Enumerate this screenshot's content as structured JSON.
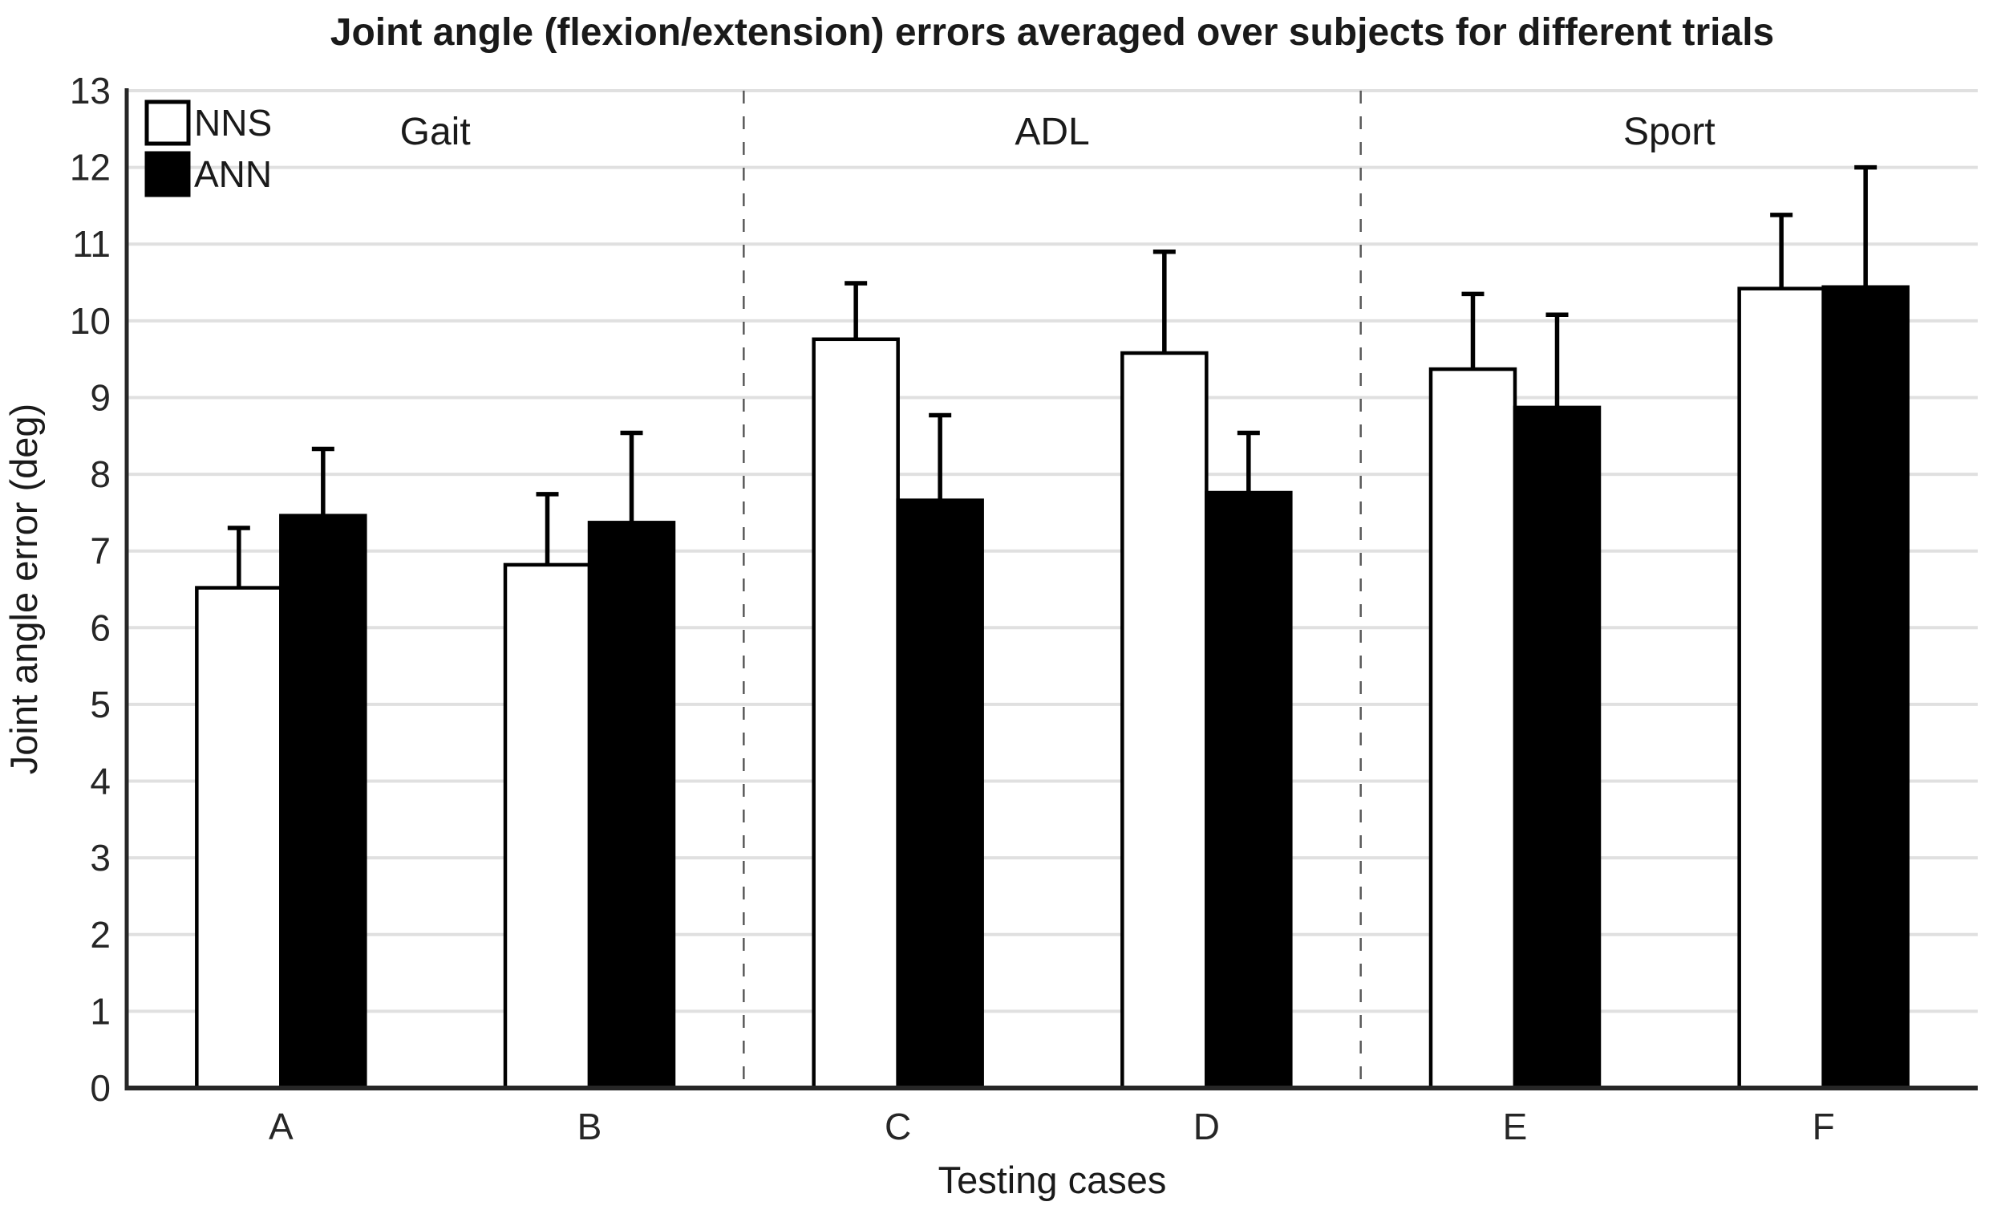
{
  "title": "Joint angle (flexion/extension) errors averaged over subjects for different trials",
  "axes": {
    "x_label": "Testing cases",
    "y_label": "Joint angle error (deg)"
  },
  "legend": {
    "items": [
      {
        "label": "NNS",
        "color": "#ffffff"
      },
      {
        "label": "ANN",
        "color": "#000000"
      }
    ]
  },
  "sections": [
    {
      "label": "Gait",
      "from": "A",
      "to": "B"
    },
    {
      "label": "ADL",
      "from": "C",
      "to": "D"
    },
    {
      "label": "Sport",
      "from": "E",
      "to": "F"
    }
  ],
  "chart_data": {
    "type": "bar",
    "title": "Joint angle (flexion/extension) errors averaged over subjects for different trials",
    "xlabel": "Testing cases",
    "ylabel": "Joint angle error (deg)",
    "categories": [
      "A",
      "B",
      "C",
      "D",
      "E",
      "F"
    ],
    "series": [
      {
        "name": "NNS",
        "fill": "#ffffff",
        "stroke": "#000000",
        "values": [
          6.52,
          6.82,
          9.76,
          9.58,
          9.37,
          10.42
        ],
        "error_upper": [
          0.78,
          0.92,
          0.73,
          1.32,
          0.98,
          0.96
        ]
      },
      {
        "name": "ANN",
        "fill": "#000000",
        "stroke": "#000000",
        "values": [
          7.46,
          7.37,
          7.66,
          7.76,
          8.87,
          10.44
        ],
        "error_upper": [
          0.87,
          1.17,
          1.11,
          0.78,
          1.21,
          1.56
        ]
      }
    ],
    "section_groups": [
      {
        "label": "Gait",
        "categories": [
          "A",
          "B"
        ]
      },
      {
        "label": "ADL",
        "categories": [
          "C",
          "D"
        ]
      },
      {
        "label": "Sport",
        "categories": [
          "E",
          "F"
        ]
      }
    ],
    "ylim": [
      0,
      13
    ],
    "y_ticks": [
      0,
      1,
      2,
      3,
      4,
      5,
      6,
      7,
      8,
      9,
      10,
      11,
      12,
      13
    ],
    "grid": "horizontal",
    "legend_position": "top-left",
    "error_bars": "upper-only"
  },
  "colors": {
    "background": "#ffffff",
    "grid": "#e0e0e0",
    "axis": "#262626",
    "divider": "#595959",
    "bar_edge": "#000000",
    "text": "#1a1a1a"
  }
}
